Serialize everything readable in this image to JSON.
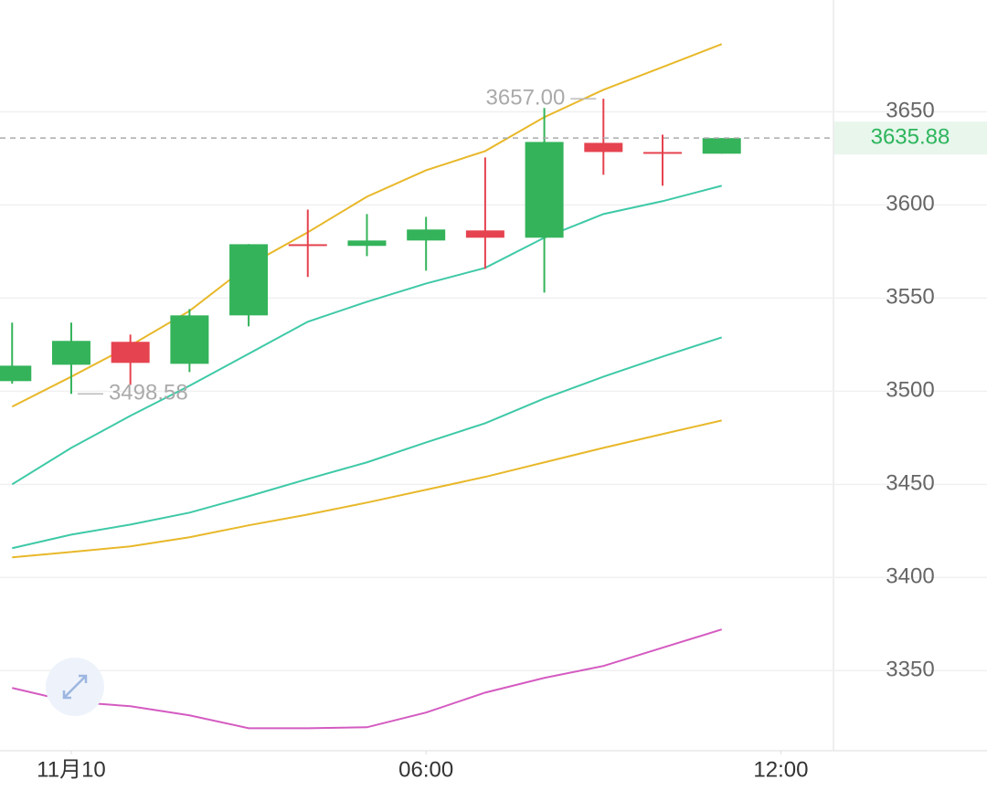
{
  "chart_data": {
    "type": "candlestick",
    "x": [
      -1,
      0,
      1,
      2,
      3,
      4,
      5,
      6,
      7,
      8,
      9,
      10,
      11
    ],
    "open": [
      3505.4,
      3514.2,
      3526.5,
      3514.7,
      3540.7,
      3578.9,
      3578.0,
      3580.9,
      3586.3,
      3582.4,
      3633.3,
      3628.4,
      3627.5
    ],
    "high": [
      3536.8,
      3536.8,
      3530.4,
      3544.1,
      3579.0,
      3597.5,
      3595.1,
      3593.6,
      3625.5,
      3652.0,
      3657.0,
      3637.7,
      3635.88
    ],
    "low": [
      3504.0,
      3498.58,
      3503.4,
      3510.3,
      3534.8,
      3561.3,
      3572.5,
      3564.7,
      3565.7,
      3552.9,
      3616.2,
      3610.3,
      3627.5
    ],
    "close": [
      3513.7,
      3527.0,
      3515.2,
      3540.7,
      3578.9,
      3578.0,
      3580.9,
      3586.8,
      3582.4,
      3633.8,
      3628.4,
      3627.5,
      3635.88
    ],
    "up_color": "#34b35a",
    "down_color": "#e5434f",
    "series": [
      {
        "color": "#e8b82a",
        "values": [
          3491.7,
          3507.8,
          3524.5,
          3543.1,
          3567.6,
          3585.3,
          3604.4,
          3618.6,
          3628.9,
          3647.1,
          3661.8,
          3674.0,
          3686.3
        ]
      },
      {
        "color": "#3ec9a7",
        "values": [
          3450.0,
          3469.6,
          3486.8,
          3502.9,
          3520.1,
          3537.3,
          3548.0,
          3557.8,
          3566.2,
          3582.4,
          3595.1,
          3602.0,
          3610.3
        ]
      },
      {
        "color": "#3ec9a7",
        "values": [
          3415.7,
          3423.0,
          3428.4,
          3434.8,
          3443.6,
          3452.9,
          3461.8,
          3472.5,
          3482.8,
          3496.1,
          3507.8,
          3518.6,
          3528.9
        ]
      },
      {
        "color": "#e8b82a",
        "values": [
          3410.8,
          3413.7,
          3416.7,
          3421.6,
          3428.0,
          3433.8,
          3440.2,
          3447.1,
          3454.0,
          3461.8,
          3469.6,
          3477.0,
          3484.3
        ]
      },
      {
        "color": "#d45bc1",
        "values": [
          3340.7,
          3333.3,
          3330.9,
          3326.0,
          3319.1,
          3319.1,
          3319.6,
          3327.5,
          3338.2,
          3346.1,
          3352.5,
          3362.3,
          3372.1
        ]
      }
    ],
    "annotations": [
      {
        "x": 9,
        "value": 3657.0,
        "label": "3657.00"
      },
      {
        "x": 0,
        "value": 3498.58,
        "label": "3498.58"
      }
    ],
    "last_price": 3635.88,
    "xlim": [
      -1.205,
      12.89
    ],
    "xticks": [
      {
        "value": 0,
        "label": "11月10"
      },
      {
        "value": 6,
        "label": "06:00"
      },
      {
        "value": 12,
        "label": "12:00"
      }
    ],
    "ylim": [
      3307,
      3710
    ],
    "yticks": [
      3350,
      3400,
      3450,
      3500,
      3550,
      3600,
      3650
    ],
    "grid": true
  }
}
